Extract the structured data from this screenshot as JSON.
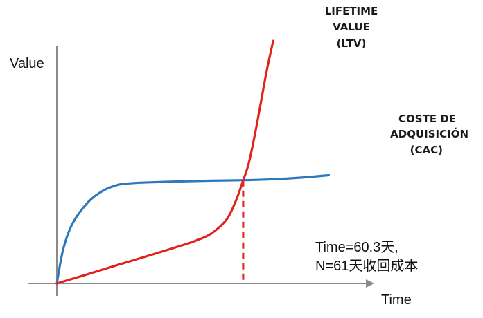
{
  "chart_data": {
    "type": "line",
    "xlabel": "Time",
    "ylabel": "Value",
    "xlim": [
      0,
      100
    ],
    "ylim": [
      0,
      100
    ],
    "grid": false,
    "series": [
      {
        "name_lines": [
          "LIFETIME",
          "VALUE"
        ],
        "abbr": "(LTV)",
        "color": "#e0241c",
        "points": [
          [
            0,
            0
          ],
          [
            10,
            3.9
          ],
          [
            20,
            7.9
          ],
          [
            30,
            11.8
          ],
          [
            40,
            15.8
          ],
          [
            45,
            18.0
          ],
          [
            50,
            21.0
          ],
          [
            55,
            27.0
          ],
          [
            58,
            35.0
          ],
          [
            60.3,
            43.4
          ],
          [
            62,
            50.0
          ],
          [
            64,
            62.0
          ],
          [
            66,
            76.0
          ],
          [
            68,
            90.0
          ],
          [
            70,
            102.0
          ]
        ]
      },
      {
        "name_lines": [
          "COSTE DE",
          "ADQUISICIÓN"
        ],
        "abbr": "(CAC)",
        "color": "#2e79b9",
        "points": [
          [
            0,
            0
          ],
          [
            2,
            14.0
          ],
          [
            5,
            25.0
          ],
          [
            10,
            34.0
          ],
          [
            15,
            39.0
          ],
          [
            20,
            41.5
          ],
          [
            25,
            42.2
          ],
          [
            30,
            42.5
          ],
          [
            40,
            42.9
          ],
          [
            50,
            43.2
          ],
          [
            60.3,
            43.4
          ],
          [
            70,
            43.8
          ],
          [
            80,
            44.6
          ],
          [
            88,
            45.5
          ]
        ]
      }
    ],
    "annotation": {
      "x": 60.3,
      "lines": [
        "Time=60.3天,",
        "N=61天收回成本"
      ],
      "color": "#e0241c"
    }
  }
}
